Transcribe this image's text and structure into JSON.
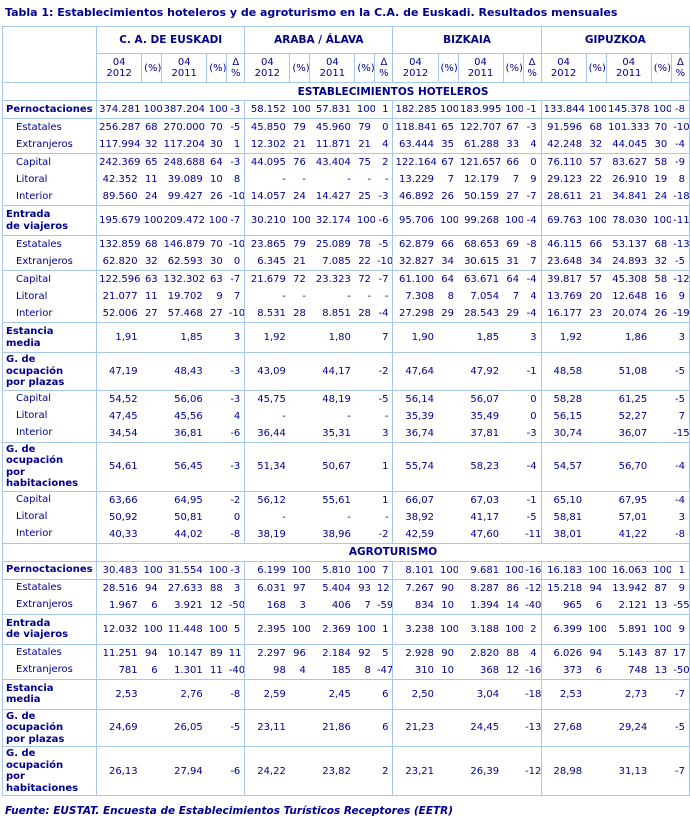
{
  "title": "Tabla 1: Establecimientos hoteleros y de agroturismo en la C.A. de Euskadi. Resultados mensuales",
  "footer": "Fuente: EUSTAT. Encuesta de Establecimientos Turísticos Receptores (EETR)",
  "colors": {
    "text_navy": "#00008B",
    "border_blue": "#A8C8E8",
    "background": "#FFFFFF"
  },
  "table": {
    "column_groups": [
      "C. A.  DE EUSKADI",
      "ARABA / ÁLAVA",
      "BIZKAIA",
      "GIPUZKOA"
    ],
    "sub_columns": [
      "04\n2012",
      "(%)",
      "04\n2011",
      "(%)",
      "Δ %"
    ],
    "sections": [
      {
        "header": "ESTABLECIMIENTOS HOTELEROS",
        "row_groups": [
          [
            {
              "label": "Pernoctaciones",
              "bold": true,
              "indent": false,
              "cells": [
                "374.281",
                "100",
                "387.204",
                "100",
                "-3",
                "58.152",
                "100",
                "57.831",
                "100",
                "1",
                "182.285",
                "100",
                "183.995",
                "100",
                "-1",
                "133.844",
                "100",
                "145.378",
                "100",
                "-8"
              ]
            }
          ],
          [
            {
              "label": "Estatales",
              "bold": false,
              "indent": true,
              "cells": [
                "256.287",
                "68",
                "270.000",
                "70",
                "-5",
                "45.850",
                "79",
                "45.960",
                "79",
                "0",
                "118.841",
                "65",
                "122.707",
                "67",
                "-3",
                "91.596",
                "68",
                "101.333",
                "70",
                "-10"
              ]
            },
            {
              "label": "Extranjeros",
              "bold": false,
              "indent": true,
              "cells": [
                "117.994",
                "32",
                "117.204",
                "30",
                "1",
                "12.302",
                "21",
                "11.871",
                "21",
                "4",
                "63.444",
                "35",
                "61.288",
                "33",
                "4",
                "42.248",
                "32",
                "44.045",
                "30",
                "-4"
              ]
            }
          ],
          [
            {
              "label": "Capital",
              "bold": false,
              "indent": true,
              "cells": [
                "242.369",
                "65",
                "248.688",
                "64",
                "-3",
                "44.095",
                "76",
                "43.404",
                "75",
                "2",
                "122.164",
                "67",
                "121.657",
                "66",
                "0",
                "76.110",
                "57",
                "83.627",
                "58",
                "-9"
              ]
            },
            {
              "label": "Litoral",
              "bold": false,
              "indent": true,
              "cells": [
                "42.352",
                "11",
                "39.089",
                "10",
                "8",
                "-",
                "-",
                "-",
                "-",
                "-",
                "13.229",
                "7",
                "12.179",
                "7",
                "9",
                "29.123",
                "22",
                "26.910",
                "19",
                "8"
              ]
            },
            {
              "label": "Interior",
              "bold": false,
              "indent": true,
              "cells": [
                "89.560",
                "24",
                "99.427",
                "26",
                "-10",
                "14.057",
                "24",
                "14.427",
                "25",
                "-3",
                "46.892",
                "26",
                "50.159",
                "27",
                "-7",
                "28.611",
                "21",
                "34.841",
                "24",
                "-18"
              ]
            }
          ],
          [
            {
              "label": "Entrada\nde viajeros",
              "bold": true,
              "indent": false,
              "cells": [
                "195.679",
                "100",
                "209.472",
                "100",
                "-7",
                "30.210",
                "100",
                "32.174",
                "100",
                "-6",
                "95.706",
                "100",
                "99.268",
                "100",
                "-4",
                "69.763",
                "100",
                "78.030",
                "100",
                "-11"
              ]
            }
          ],
          [
            {
              "label": "Estatales",
              "bold": false,
              "indent": true,
              "cells": [
                "132.859",
                "68",
                "146.879",
                "70",
                "-10",
                "23.865",
                "79",
                "25.089",
                "78",
                "-5",
                "62.879",
                "66",
                "68.653",
                "69",
                "-8",
                "46.115",
                "66",
                "53.137",
                "68",
                "-13"
              ]
            },
            {
              "label": "Extranjeros",
              "bold": false,
              "indent": true,
              "cells": [
                "62.820",
                "32",
                "62.593",
                "30",
                "0",
                "6.345",
                "21",
                "7.085",
                "22",
                "-10",
                "32.827",
                "34",
                "30.615",
                "31",
                "7",
                "23.648",
                "34",
                "24.893",
                "32",
                "-5"
              ]
            }
          ],
          [
            {
              "label": "Capital",
              "bold": false,
              "indent": true,
              "cells": [
                "122.596",
                "63",
                "132.302",
                "63",
                "-7",
                "21.679",
                "72",
                "23.323",
                "72",
                "-7",
                "61.100",
                "64",
                "63.671",
                "64",
                "-4",
                "39.817",
                "57",
                "45.308",
                "58",
                "-12"
              ]
            },
            {
              "label": "Litoral",
              "bold": false,
              "indent": true,
              "cells": [
                "21.077",
                "11",
                "19.702",
                "9",
                "7",
                "-",
                "-",
                "-",
                "-",
                "-",
                "7.308",
                "8",
                "7.054",
                "7",
                "4",
                "13.769",
                "20",
                "12.648",
                "16",
                "9"
              ]
            },
            {
              "label": "Interior",
              "bold": false,
              "indent": true,
              "cells": [
                "52.006",
                "27",
                "57.468",
                "27",
                "-10",
                "8.531",
                "28",
                "8.851",
                "28",
                "-4",
                "27.298",
                "29",
                "28.543",
                "29",
                "-4",
                "16.177",
                "23",
                "20.074",
                "26",
                "-19"
              ]
            }
          ],
          [
            {
              "label": "Estancia\nmedia",
              "bold": true,
              "indent": false,
              "cells": [
                "1,91",
                "",
                "1,85",
                "",
                "3",
                "1,92",
                "",
                "1,80",
                "",
                "7",
                "1,90",
                "",
                "1,85",
                "",
                "3",
                "1,92",
                "",
                "1,86",
                "",
                "3"
              ]
            }
          ],
          [
            {
              "label": "G. de ocupación\npor plazas",
              "bold": true,
              "indent": false,
              "cells": [
                "47,19",
                "",
                "48,43",
                "",
                "-3",
                "43,09",
                "",
                "44,17",
                "",
                "-2",
                "47,64",
                "",
                "47,92",
                "",
                "-1",
                "48,58",
                "",
                "51,08",
                "",
                "-5"
              ]
            }
          ],
          [
            {
              "label": "Capital",
              "bold": false,
              "indent": true,
              "cells": [
                "54,52",
                "",
                "56,06",
                "",
                "-3",
                "45,75",
                "",
                "48,19",
                "",
                "-5",
                "56,14",
                "",
                "56,07",
                "",
                "0",
                "58,28",
                "",
                "61,25",
                "",
                "-5"
              ]
            },
            {
              "label": "Litoral",
              "bold": false,
              "indent": true,
              "cells": [
                "47,45",
                "",
                "45,56",
                "",
                "4",
                "-",
                "",
                "-",
                "",
                "-",
                "35,39",
                "",
                "35,49",
                "",
                "0",
                "56,15",
                "",
                "52,27",
                "",
                "7"
              ]
            },
            {
              "label": "Interior",
              "bold": false,
              "indent": true,
              "cells": [
                "34,54",
                "",
                "36,81",
                "",
                "-6",
                "36,44",
                "",
                "35,31",
                "",
                "3",
                "36,74",
                "",
                "37,81",
                "",
                "-3",
                "30,74",
                "",
                "36,07",
                "",
                "-15"
              ]
            }
          ],
          [
            {
              "label": "G. de ocupación\npor habitaciones",
              "bold": true,
              "indent": false,
              "cells": [
                "54,61",
                "",
                "56,45",
                "",
                "-3",
                "51,34",
                "",
                "50,67",
                "",
                "1",
                "55,74",
                "",
                "58,23",
                "",
                "-4",
                "54,57",
                "",
                "56,70",
                "",
                "-4"
              ]
            }
          ],
          [
            {
              "label": "Capital",
              "bold": false,
              "indent": true,
              "cells": [
                "63,66",
                "",
                "64,95",
                "",
                "-2",
                "56,12",
                "",
                "55,61",
                "",
                "1",
                "66,07",
                "",
                "67,03",
                "",
                "-1",
                "65,10",
                "",
                "67,95",
                "",
                "-4"
              ]
            },
            {
              "label": "Litoral",
              "bold": false,
              "indent": true,
              "cells": [
                "50,92",
                "",
                "50,81",
                "",
                "0",
                "-",
                "",
                "-",
                "",
                "-",
                "38,92",
                "",
                "41,17",
                "",
                "-5",
                "58,81",
                "",
                "57,01",
                "",
                "3"
              ]
            },
            {
              "label": "Interior",
              "bold": false,
              "indent": true,
              "cells": [
                "40,33",
                "",
                "44,02",
                "",
                "-8",
                "38,19",
                "",
                "38,96",
                "",
                "-2",
                "42,59",
                "",
                "47,60",
                "",
                "-11",
                "38,01",
                "",
                "41,22",
                "",
                "-8"
              ]
            }
          ]
        ]
      },
      {
        "header": "AGROTURISMO",
        "row_groups": [
          [
            {
              "label": "Pernoctaciones",
              "bold": true,
              "indent": false,
              "cells": [
                "30.483",
                "100",
                "31.554",
                "100",
                "-3",
                "6.199",
                "100",
                "5.810",
                "100",
                "7",
                "8.101",
                "100",
                "9.681",
                "100",
                "-16",
                "16.183",
                "100",
                "16.063",
                "100",
                "1"
              ]
            }
          ],
          [
            {
              "label": "Estatales",
              "bold": false,
              "indent": true,
              "cells": [
                "28.516",
                "94",
                "27.633",
                "88",
                "3",
                "6.031",
                "97",
                "5.404",
                "93",
                "12",
                "7.267",
                "90",
                "8.287",
                "86",
                "-12",
                "15.218",
                "94",
                "13.942",
                "87",
                "9"
              ]
            },
            {
              "label": "Extranjeros",
              "bold": false,
              "indent": true,
              "cells": [
                "1.967",
                "6",
                "3.921",
                "12",
                "-50",
                "168",
                "3",
                "406",
                "7",
                "-59",
                "834",
                "10",
                "1.394",
                "14",
                "-40",
                "965",
                "6",
                "2.121",
                "13",
                "-55"
              ]
            }
          ],
          [
            {
              "label": "Entrada\nde viajeros",
              "bold": true,
              "indent": false,
              "cells": [
                "12.032",
                "100",
                "11.448",
                "100",
                "5",
                "2.395",
                "100",
                "2.369",
                "100",
                "1",
                "3.238",
                "100",
                "3.188",
                "100",
                "2",
                "6.399",
                "100",
                "5.891",
                "100",
                "9"
              ]
            }
          ],
          [
            {
              "label": "Estatales",
              "bold": false,
              "indent": true,
              "cells": [
                "11.251",
                "94",
                "10.147",
                "89",
                "11",
                "2.297",
                "96",
                "2.184",
                "92",
                "5",
                "2.928",
                "90",
                "2.820",
                "88",
                "4",
                "6.026",
                "94",
                "5.143",
                "87",
                "17"
              ]
            },
            {
              "label": "Extranjeros",
              "bold": false,
              "indent": true,
              "cells": [
                "781",
                "6",
                "1.301",
                "11",
                "-40",
                "98",
                "4",
                "185",
                "8",
                "-47",
                "310",
                "10",
                "368",
                "12",
                "-16",
                "373",
                "6",
                "748",
                "13",
                "-50"
              ]
            }
          ],
          [
            {
              "label": "Estancia\nmedia",
              "bold": true,
              "indent": false,
              "cells": [
                "2,53",
                "",
                "2,76",
                "",
                "-8",
                "2,59",
                "",
                "2,45",
                "",
                "6",
                "2,50",
                "",
                "3,04",
                "",
                "-18",
                "2,53",
                "",
                "2,73",
                "",
                "-7"
              ]
            }
          ],
          [
            {
              "label": "G. de ocupación\npor plazas",
              "bold": true,
              "indent": false,
              "cells": [
                "24,69",
                "",
                "26,05",
                "",
                "-5",
                "23,11",
                "",
                "21,86",
                "",
                "6",
                "21,23",
                "",
                "24,45",
                "",
                "-13",
                "27,68",
                "",
                "29,24",
                "",
                "-5"
              ]
            }
          ],
          [
            {
              "label": "G. de ocupación\npor habitaciones",
              "bold": true,
              "indent": false,
              "cells": [
                "26,13",
                "",
                "27,94",
                "",
                "-6",
                "24,22",
                "",
                "23,82",
                "",
                "2",
                "23,21",
                "",
                "26,39",
                "",
                "-12",
                "28,98",
                "",
                "31,13",
                "",
                "-7"
              ]
            }
          ]
        ]
      }
    ]
  }
}
